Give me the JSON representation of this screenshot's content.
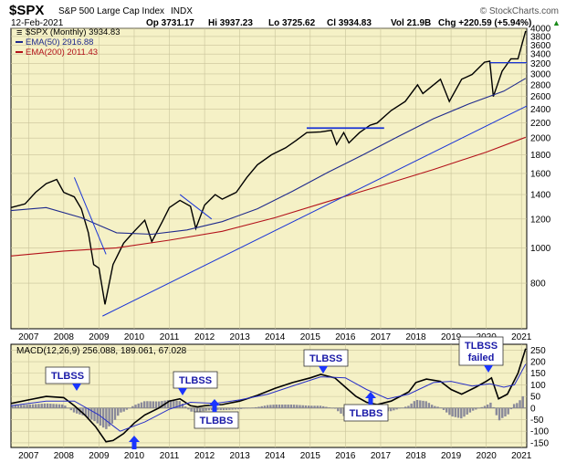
{
  "header": {
    "symbol": "$SPX",
    "name": "S&P 500 Large Cap Index",
    "exchange": "INDX",
    "date": "12-Feb-2021",
    "open": "Op 3731.17",
    "high": "Hi 3937.23",
    "low": "Lo 3725.62",
    "close": "Cl 3934.83",
    "volume": "Vol 21.9B",
    "change": "Chg +220.59 (+5.94%)",
    "change_arrow": "▲",
    "watermark": "© StockCharts.com"
  },
  "colors": {
    "panel_bg": "#f5f1c6",
    "grid": "#c9c39a",
    "price": "#000000",
    "ema50": "#1f2a8c",
    "ema200": "#b3121a",
    "trendline": "#1a35d6",
    "macd_line": "#000000",
    "signal_line": "#2830c8",
    "histogram": "#8a8a9a",
    "annotation_text": "#1a1aa8",
    "annotation_arrow": "#1a35ff",
    "change_up": "#1a8a1a"
  },
  "legend_price": [
    {
      "label": "$SPX (Monthly) 3934.83",
      "color": "#000000"
    },
    {
      "label": "EMA(50) 2916.88",
      "color": "#1f2a8c"
    },
    {
      "label": "EMA(200) 2011.43",
      "color": "#b3121a"
    }
  ],
  "legend_macd": {
    "label": "MACD(12,26,9) 256.088, 189.061, 67.028"
  },
  "annotations": {
    "tlbss_2008": "TLBSS",
    "tlbss_2011": "TLBSS",
    "tlbss_2015": "TLBSS",
    "tlbss_2020_line1": "TLBSS",
    "tlbss_2020_line2": "failed",
    "tlbbs_2012": "TLBBS",
    "tlbbs_2016": "TLBBS"
  },
  "chart_data": [
    {
      "type": "line",
      "scale": "log",
      "ylim": [
        600,
        4000
      ],
      "price_ticks": [
        800,
        1000,
        1200,
        1400,
        1600,
        1800,
        2000,
        2200,
        2400,
        2600,
        2800,
        3000,
        3200,
        3400,
        3600,
        3800,
        4000
      ],
      "xlim": [
        2006.5,
        2021.15
      ],
      "year_ticks": [
        2007,
        2008,
        2009,
        2010,
        2011,
        2012,
        2013,
        2014,
        2015,
        2016,
        2017,
        2018,
        2019,
        2020,
        2021
      ],
      "series": [
        {
          "name": "$SPX (Monthly)",
          "x": [
            2006.5,
            2006.9,
            2007.2,
            2007.5,
            2007.8,
            2008.0,
            2008.3,
            2008.5,
            2008.7,
            2008.85,
            2009.0,
            2009.17,
            2009.4,
            2009.7,
            2010.0,
            2010.3,
            2010.5,
            2010.8,
            2011.0,
            2011.3,
            2011.6,
            2011.75,
            2012.0,
            2012.3,
            2012.5,
            2012.9,
            2013.2,
            2013.5,
            2013.9,
            2014.3,
            2014.6,
            2014.9,
            2015.3,
            2015.6,
            2015.75,
            2015.95,
            2016.1,
            2016.4,
            2016.7,
            2016.9,
            2017.3,
            2017.7,
            2018.05,
            2018.2,
            2018.7,
            2018.95,
            2019.3,
            2019.6,
            2019.95,
            2020.1,
            2020.2,
            2020.45,
            2020.7,
            2020.9,
            2021.12
          ],
          "values": [
            1290,
            1320,
            1420,
            1500,
            1540,
            1420,
            1380,
            1280,
            1100,
            900,
            880,
            700,
            900,
            1030,
            1110,
            1190,
            1040,
            1180,
            1290,
            1350,
            1300,
            1130,
            1310,
            1400,
            1360,
            1420,
            1560,
            1690,
            1800,
            1880,
            1970,
            2070,
            2080,
            2100,
            1920,
            2070,
            1940,
            2070,
            2170,
            2200,
            2380,
            2520,
            2800,
            2650,
            2900,
            2520,
            2900,
            2990,
            3230,
            3250,
            2600,
            3050,
            3300,
            3300,
            3934
          ]
        },
        {
          "name": "EMA(50)",
          "x": [
            2006.5,
            2007.5,
            2008.5,
            2009.5,
            2010.5,
            2011.5,
            2012.5,
            2013.5,
            2014.5,
            2015.5,
            2016.5,
            2017.5,
            2018.5,
            2019.5,
            2020.5,
            2021.12
          ],
          "values": [
            1265,
            1290,
            1210,
            1100,
            1090,
            1120,
            1180,
            1280,
            1430,
            1610,
            1800,
            2020,
            2260,
            2480,
            2690,
            2917
          ]
        },
        {
          "name": "EMA(200)",
          "x": [
            2006.5,
            2008.0,
            2009.5,
            2011.0,
            2012.5,
            2014.0,
            2015.5,
            2017.0,
            2018.5,
            2020.0,
            2021.12
          ],
          "values": [
            950,
            980,
            1000,
            1050,
            1110,
            1210,
            1340,
            1480,
            1640,
            1830,
            2011
          ]
        }
      ]
    },
    {
      "type": "line",
      "ylim": [
        -170,
        275
      ],
      "ticks": [
        -150,
        -100,
        -50,
        0,
        50,
        100,
        150,
        200,
        250
      ],
      "xlim": [
        2006.5,
        2021.15
      ],
      "series": [
        {
          "name": "MACD(12,26,9)",
          "x": [
            2006.5,
            2007.0,
            2007.5,
            2008.0,
            2008.3,
            2008.6,
            2008.9,
            2009.2,
            2009.4,
            2009.7,
            2010.0,
            2010.3,
            2010.7,
            2011.0,
            2011.3,
            2011.6,
            2011.8,
            2012.0,
            2012.5,
            2013.0,
            2013.5,
            2014.0,
            2014.5,
            2015.0,
            2015.3,
            2015.7,
            2016.0,
            2016.3,
            2016.6,
            2016.9,
            2017.3,
            2017.8,
            2018.0,
            2018.3,
            2018.7,
            2019.0,
            2019.3,
            2019.7,
            2020.0,
            2020.15,
            2020.35,
            2020.6,
            2020.9,
            2021.12
          ],
          "values": [
            20,
            35,
            50,
            45,
            10,
            -30,
            -80,
            -145,
            -140,
            -110,
            -65,
            -30,
            0,
            30,
            40,
            10,
            5,
            10,
            15,
            30,
            55,
            85,
            110,
            130,
            145,
            130,
            90,
            50,
            25,
            15,
            30,
            70,
            110,
            125,
            115,
            80,
            60,
            90,
            115,
            130,
            40,
            60,
            150,
            256
          ]
        },
        {
          "name": "Signal",
          "x": [
            2006.5,
            2007.5,
            2008.3,
            2009.0,
            2009.6,
            2010.3,
            2011.0,
            2011.6,
            2012.3,
            2013.0,
            2013.8,
            2014.6,
            2015.3,
            2016.0,
            2016.6,
            2017.2,
            2017.8,
            2018.5,
            2019.0,
            2019.6,
            2020.1,
            2020.5,
            2020.8,
            2021.12
          ],
          "values": [
            10,
            30,
            30,
            -30,
            -100,
            -60,
            -5,
            25,
            20,
            35,
            60,
            100,
            135,
            130,
            80,
            40,
            60,
            110,
            115,
            95,
            105,
            90,
            100,
            189
          ]
        }
      ]
    }
  ]
}
